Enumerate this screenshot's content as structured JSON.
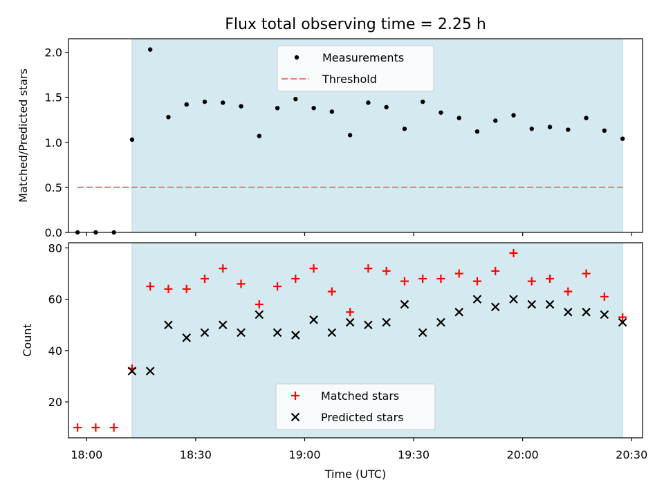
{
  "chart_data": [
    {
      "type": "scatter",
      "title": "Flux total observing time = 2.25 h",
      "xlabel": "",
      "ylabel": "Matched/Predicted stars",
      "ylim": [
        0,
        2.15
      ],
      "yticks": [
        "0.0",
        "0.5",
        "1.0",
        "1.5",
        "2.0"
      ],
      "xlim": [
        "17:55",
        "20:33"
      ],
      "x_tick_labels": "none (shared with lower panel)",
      "legend": {
        "location": "top-center",
        "entries": [
          "Measurements",
          "Threshold"
        ]
      },
      "shaded_region": {
        "from": "18:12.5",
        "to": "20:27.5",
        "color": "#d4eaf0"
      },
      "threshold": {
        "name": "Threshold",
        "value": 0.5,
        "from": "17:57.5",
        "to": "20:27.5",
        "color": "#f08080",
        "style": "dashed"
      },
      "series": [
        {
          "name": "Measurements",
          "color": "#000000",
          "marker": "dot",
          "points": [
            [
              "17:57.5",
              0.0
            ],
            [
              "18:02.5",
              0.0
            ],
            [
              "18:07.5",
              0.0
            ],
            [
              "18:12.5",
              1.03
            ],
            [
              "18:17.5",
              2.03
            ],
            [
              "18:22.5",
              1.28
            ],
            [
              "18:27.5",
              1.42
            ],
            [
              "18:32.5",
              1.45
            ],
            [
              "18:37.5",
              1.44
            ],
            [
              "18:42.5",
              1.4
            ],
            [
              "18:47.5",
              1.07
            ],
            [
              "18:52.5",
              1.38
            ],
            [
              "18:57.5",
              1.48
            ],
            [
              "19:02.5",
              1.38
            ],
            [
              "19:07.5",
              1.34
            ],
            [
              "19:12.5",
              1.08
            ],
            [
              "19:17.5",
              1.44
            ],
            [
              "19:22.5",
              1.39
            ],
            [
              "19:27.5",
              1.15
            ],
            [
              "19:32.5",
              1.45
            ],
            [
              "19:37.5",
              1.33
            ],
            [
              "19:42.5",
              1.27
            ],
            [
              "19:47.5",
              1.12
            ],
            [
              "19:52.5",
              1.24
            ],
            [
              "19:57.5",
              1.3
            ],
            [
              "20:02.5",
              1.15
            ],
            [
              "20:07.5",
              1.17
            ],
            [
              "20:12.5",
              1.14
            ],
            [
              "20:17.5",
              1.27
            ],
            [
              "20:22.5",
              1.13
            ],
            [
              "20:27.5",
              1.04
            ]
          ]
        }
      ]
    },
    {
      "type": "scatter",
      "title": "",
      "xlabel": "Time (UTC)",
      "ylabel": "Count",
      "ylim": [
        6,
        82
      ],
      "yticks": [
        "20",
        "40",
        "60",
        "80"
      ],
      "xlim": [
        "17:55",
        "20:33"
      ],
      "xticks": [
        "18:00",
        "18:30",
        "19:00",
        "19:30",
        "20:00",
        "20:30"
      ],
      "legend": {
        "location": "bottom-center",
        "entries": [
          "Matched stars",
          "Predicted stars"
        ]
      },
      "shaded_region": {
        "from": "18:12.5",
        "to": "20:27.5",
        "color": "#d4eaf0"
      },
      "series": [
        {
          "name": "Matched stars",
          "color": "#ff0000",
          "marker": "plus",
          "points": [
            [
              "17:57.5",
              10
            ],
            [
              "18:02.5",
              10
            ],
            [
              "18:07.5",
              10
            ],
            [
              "18:12.5",
              33
            ],
            [
              "18:17.5",
              65
            ],
            [
              "18:22.5",
              64
            ],
            [
              "18:27.5",
              64
            ],
            [
              "18:32.5",
              68
            ],
            [
              "18:37.5",
              72
            ],
            [
              "18:42.5",
              66
            ],
            [
              "18:47.5",
              58
            ],
            [
              "18:52.5",
              65
            ],
            [
              "18:57.5",
              68
            ],
            [
              "19:02.5",
              72
            ],
            [
              "19:07.5",
              63
            ],
            [
              "19:12.5",
              55
            ],
            [
              "19:17.5",
              72
            ],
            [
              "19:22.5",
              71
            ],
            [
              "19:27.5",
              67
            ],
            [
              "19:32.5",
              68
            ],
            [
              "19:37.5",
              68
            ],
            [
              "19:42.5",
              70
            ],
            [
              "19:47.5",
              67
            ],
            [
              "19:52.5",
              71
            ],
            [
              "19:57.5",
              78
            ],
            [
              "20:02.5",
              67
            ],
            [
              "20:07.5",
              68
            ],
            [
              "20:12.5",
              63
            ],
            [
              "20:17.5",
              70
            ],
            [
              "20:22.5",
              61
            ],
            [
              "20:27.5",
              53
            ]
          ]
        },
        {
          "name": "Predicted stars",
          "color": "#000000",
          "marker": "x",
          "points": [
            [
              "18:12.5",
              32
            ],
            [
              "18:17.5",
              32
            ],
            [
              "18:22.5",
              50
            ],
            [
              "18:27.5",
              45
            ],
            [
              "18:32.5",
              47
            ],
            [
              "18:37.5",
              50
            ],
            [
              "18:42.5",
              47
            ],
            [
              "18:47.5",
              54
            ],
            [
              "18:52.5",
              47
            ],
            [
              "18:57.5",
              46
            ],
            [
              "19:02.5",
              52
            ],
            [
              "19:07.5",
              47
            ],
            [
              "19:12.5",
              51
            ],
            [
              "19:17.5",
              50
            ],
            [
              "19:22.5",
              51
            ],
            [
              "19:27.5",
              58
            ],
            [
              "19:32.5",
              47
            ],
            [
              "19:37.5",
              51
            ],
            [
              "19:42.5",
              55
            ],
            [
              "19:47.5",
              60
            ],
            [
              "19:52.5",
              57
            ],
            [
              "19:57.5",
              60
            ],
            [
              "20:02.5",
              58
            ],
            [
              "20:07.5",
              58
            ],
            [
              "20:12.5",
              55
            ],
            [
              "20:17.5",
              55
            ],
            [
              "20:22.5",
              54
            ],
            [
              "20:27.5",
              51
            ]
          ]
        }
      ]
    }
  ]
}
